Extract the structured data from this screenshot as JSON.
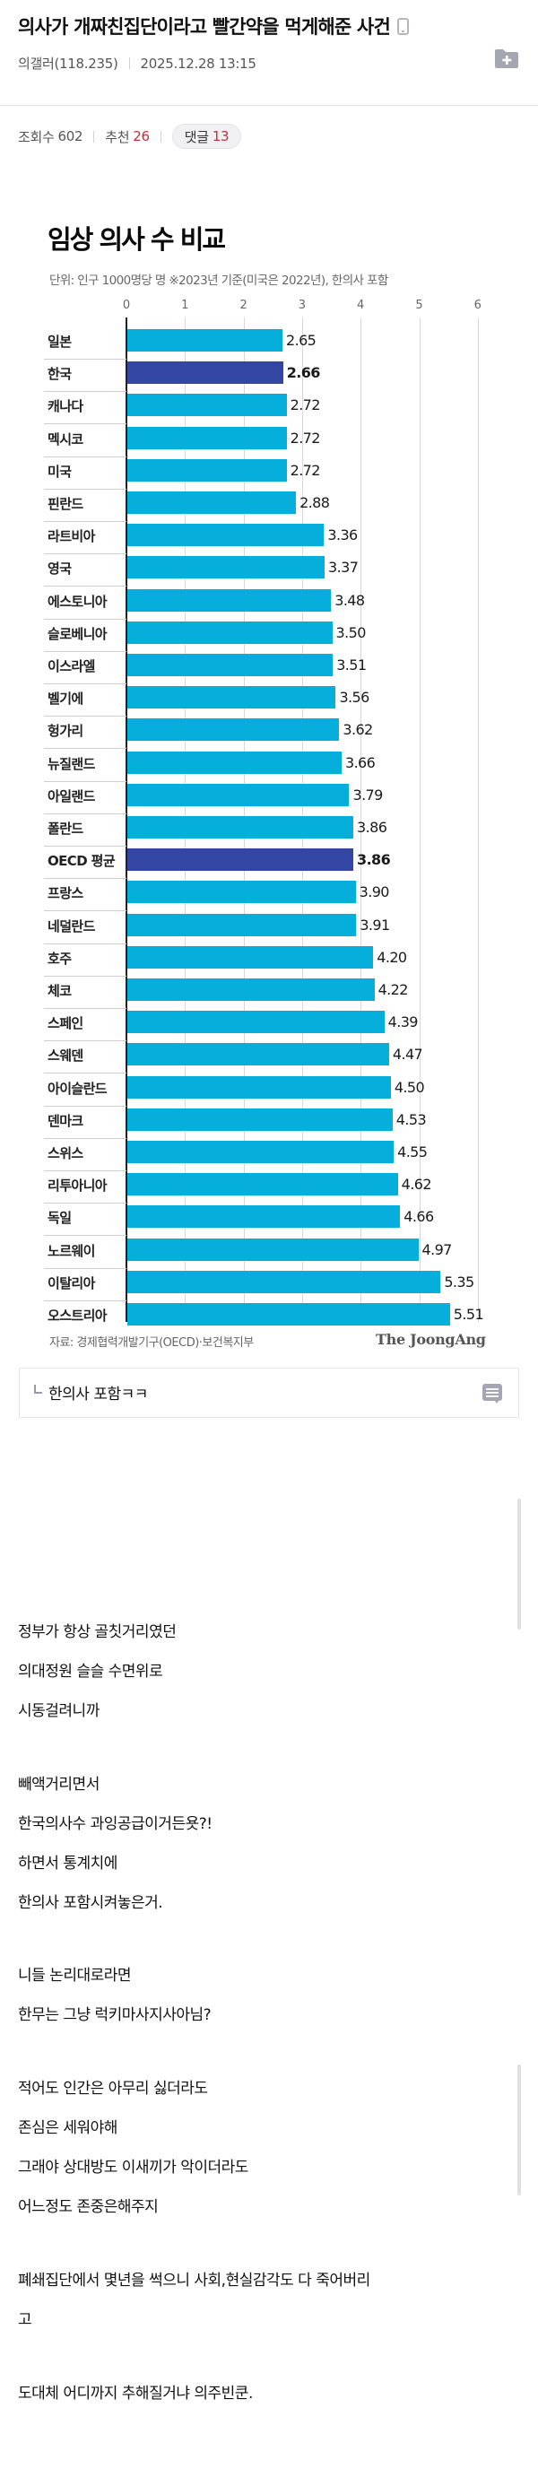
{
  "post": {
    "title": "의사가 개짜친집단이라고 빨간약을 먹게해준 사건",
    "author": "의갤러(118.235)",
    "datetime": "2025.12.28 13:15",
    "views_label": "조회수",
    "views": "602",
    "recommend_label": "추천",
    "recommend": "26",
    "comments_label": "댓글",
    "comments": "13",
    "icons": {
      "device": "mobile-icon",
      "folder": "folder-plus-icon"
    }
  },
  "chart_data": {
    "type": "bar",
    "orientation": "horizontal",
    "title": "임상 의사 수 비교",
    "subtitle": "단위: 인구 1000명당 명   ※2023년 기준(미국은 2022년), 한의사 포함",
    "xlabel": "",
    "ylabel": "",
    "xlim": [
      0,
      6
    ],
    "ticks": [
      "0",
      "1",
      "2",
      "3",
      "4",
      "5",
      "6"
    ],
    "grid": true,
    "highlight_color": "#3446a4",
    "bar_color": "#06aedb",
    "categories": [
      "일본",
      "한국",
      "캐나다",
      "멕시코",
      "미국",
      "핀란드",
      "라트비아",
      "영국",
      "에스토니아",
      "슬로베니아",
      "이스라엘",
      "벨기에",
      "헝가리",
      "뉴질랜드",
      "아일랜드",
      "폴란드",
      "OECD 평균",
      "프랑스",
      "네덜란드",
      "호주",
      "체코",
      "스페인",
      "스웨덴",
      "아이슬란드",
      "덴마크",
      "스위스",
      "리투아니아",
      "독일",
      "노르웨이",
      "이탈리아",
      "오스트리아"
    ],
    "values": [
      2.65,
      2.66,
      2.72,
      2.72,
      2.72,
      2.88,
      3.36,
      3.37,
      3.48,
      3.5,
      3.51,
      3.56,
      3.62,
      3.66,
      3.79,
      3.86,
      3.86,
      3.9,
      3.91,
      4.2,
      4.22,
      4.39,
      4.47,
      4.5,
      4.53,
      4.55,
      4.62,
      4.66,
      4.97,
      5.35,
      5.51
    ],
    "value_labels": [
      "2.65",
      "2.66",
      "2.72",
      "2.72",
      "2.72",
      "2.88",
      "3.36",
      "3.37",
      "3.48",
      "3.50",
      "3.51",
      "3.56",
      "3.62",
      "3.66",
      "3.79",
      "3.86",
      "3.86",
      "3.90",
      "3.91",
      "4.20",
      "4.22",
      "4.39",
      "4.47",
      "4.50",
      "4.53",
      "4.55",
      "4.62",
      "4.66",
      "4.97",
      "5.35",
      "5.51"
    ],
    "highlighted": [
      "한국",
      "OECD 평균"
    ],
    "source": "자료: 경제협력개발기구(OECD)·보건복지부",
    "credit": "The JoongAng"
  },
  "comment_box": {
    "text": "한의사 포함ㅋㅋ",
    "icon": "comment-icon"
  },
  "body": {
    "lines": [
      "정부가 항상 골칫거리였던",
      "의대정원 슬슬 수면위로",
      "시동걸려니까",
      "빼액거리면서",
      "한국의사수 과잉공급이거든욧?!",
      "하면서 통계치에",
      "한의사 포함시켜놓은거.",
      "니들 논리대로라면",
      "한무는 그냥 럭키마사지사아님?",
      "적어도 인간은 아무리 싫더라도",
      "존심은 세워야해",
      "그래야 상대방도 이새끼가 악이더라도",
      "어느정도 존중은해주지",
      "폐쇄집단에서 몇년을 썩으니 사회,현실감각도 다 죽어버리",
      "고",
      "도대체 어디까지 추해질거냐 의주빈쿤."
    ]
  }
}
